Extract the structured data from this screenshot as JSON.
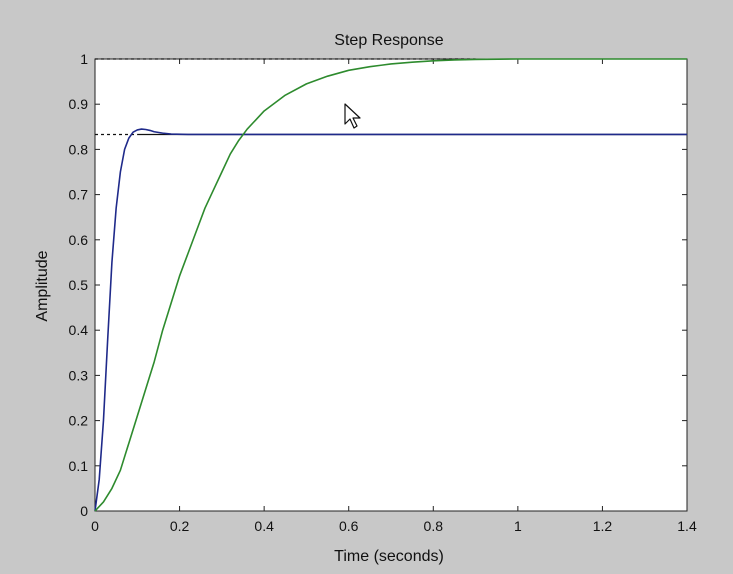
{
  "chart_data": {
    "type": "line",
    "title": "Step Response",
    "xlabel": "Time (seconds)",
    "ylabel": "Amplitude",
    "xlim": [
      0,
      1.4
    ],
    "ylim": [
      0,
      1
    ],
    "xticks": [
      0,
      0.2,
      0.4,
      0.6,
      0.8,
      1,
      1.2,
      1.4
    ],
    "xtick_labels": [
      "0",
      "0.2",
      "0.4",
      "0.6",
      "0.8",
      "1",
      "1.2",
      "1.4"
    ],
    "yticks": [
      0,
      0.1,
      0.2,
      0.3,
      0.4,
      0.5,
      0.6,
      0.7,
      0.8,
      0.9,
      1
    ],
    "ytick_labels": [
      "0",
      "0.1",
      "0.2",
      "0.3",
      "0.4",
      "0.5",
      "0.6",
      "0.7",
      "0.8",
      "0.9",
      "1"
    ],
    "grid": false,
    "colors": {
      "figure_background": "#c8c8c8",
      "axes_background": "#ffffff",
      "blue_series": "#1f2a8a",
      "green_series": "#2e8b2e",
      "reference_line": "#111111"
    },
    "series": [
      {
        "color": "#1f2a8a",
        "x": [
          0,
          0.01,
          0.02,
          0.03,
          0.04,
          0.05,
          0.06,
          0.07,
          0.08,
          0.09,
          0.1,
          0.11,
          0.12,
          0.13,
          0.14,
          0.16,
          0.18,
          0.22,
          0.3,
          0.5,
          0.7,
          0.9,
          1.1,
          1.4
        ],
        "y": [
          0,
          0.07,
          0.2,
          0.38,
          0.55,
          0.67,
          0.75,
          0.8,
          0.825,
          0.838,
          0.843,
          0.845,
          0.844,
          0.842,
          0.839,
          0.836,
          0.834,
          0.833,
          0.833,
          0.833,
          0.833,
          0.833,
          0.833,
          0.833
        ]
      },
      {
        "color": "#2e8b2e",
        "x": [
          0,
          0.02,
          0.04,
          0.06,
          0.08,
          0.1,
          0.12,
          0.14,
          0.16,
          0.18,
          0.2,
          0.22,
          0.24,
          0.26,
          0.28,
          0.3,
          0.32,
          0.34,
          0.36,
          0.38,
          0.4,
          0.45,
          0.5,
          0.55,
          0.6,
          0.65,
          0.7,
          0.75,
          0.8,
          0.85,
          0.9,
          1.0,
          1.1,
          1.2,
          1.3,
          1.4
        ],
        "y": [
          0,
          0.02,
          0.05,
          0.09,
          0.15,
          0.21,
          0.27,
          0.33,
          0.4,
          0.46,
          0.52,
          0.57,
          0.62,
          0.67,
          0.71,
          0.75,
          0.79,
          0.82,
          0.845,
          0.865,
          0.885,
          0.92,
          0.945,
          0.962,
          0.975,
          0.983,
          0.989,
          0.993,
          0.996,
          0.998,
          0.999,
          1.0,
          1.0,
          1.0,
          1.0,
          1.0
        ]
      }
    ],
    "reference_lines": [
      {
        "y": 1.0,
        "x_start": 0,
        "x_end": 0.9,
        "style": "dashed"
      },
      {
        "y": 0.833,
        "x_start": 0,
        "x_end": 1.4,
        "style": "solid",
        "dashed_until": 0.1
      }
    ]
  }
}
